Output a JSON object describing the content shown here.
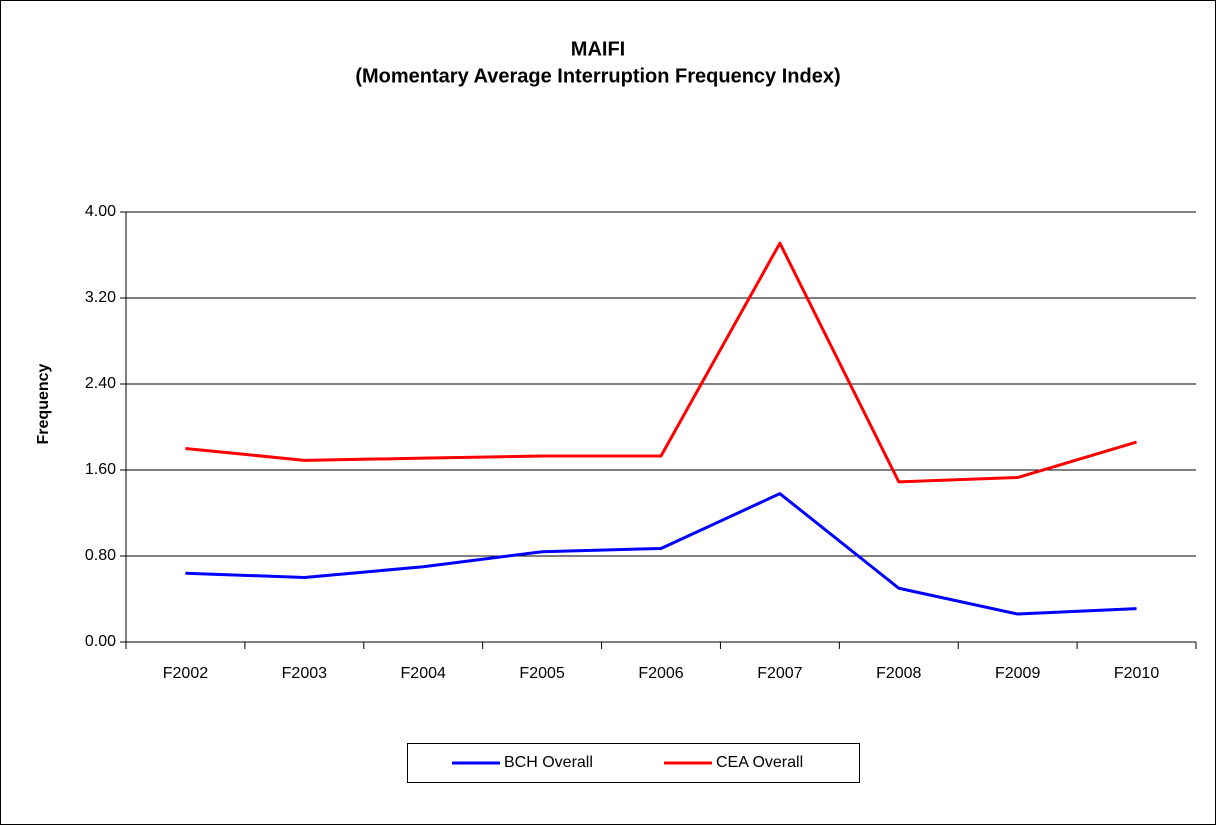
{
  "chart_data": {
    "type": "line",
    "title": "MAIFI",
    "subtitle": "(Momentary Average Interruption Frequency Index)",
    "y_label": "Frequency",
    "categories": [
      "F2002",
      "F2003",
      "F2004",
      "F2005",
      "F2006",
      "F2007",
      "F2008",
      "F2009",
      "F2010"
    ],
    "series": [
      {
        "name": "BCH Overall",
        "color": "#0000ff",
        "values": [
          0.64,
          0.6,
          0.7,
          0.84,
          0.87,
          1.38,
          0.5,
          0.26,
          0.31
        ]
      },
      {
        "name": "CEA Overall",
        "color": "#ff0000",
        "values": [
          1.8,
          1.69,
          1.71,
          1.73,
          1.73,
          3.71,
          1.49,
          1.53,
          1.86
        ]
      }
    ],
    "ylim": [
      0,
      4
    ],
    "yticks": [
      {
        "value": 0,
        "label": "0.00"
      },
      {
        "value": 0.8,
        "label": "0.80"
      },
      {
        "value": 1.6,
        "label": "1.60"
      },
      {
        "value": 2.4,
        "label": "2.40"
      },
      {
        "value": 3.2,
        "label": "3.20"
      },
      {
        "value": 4,
        "label": "4.00"
      }
    ],
    "grid": true,
    "legend": "bottom"
  }
}
